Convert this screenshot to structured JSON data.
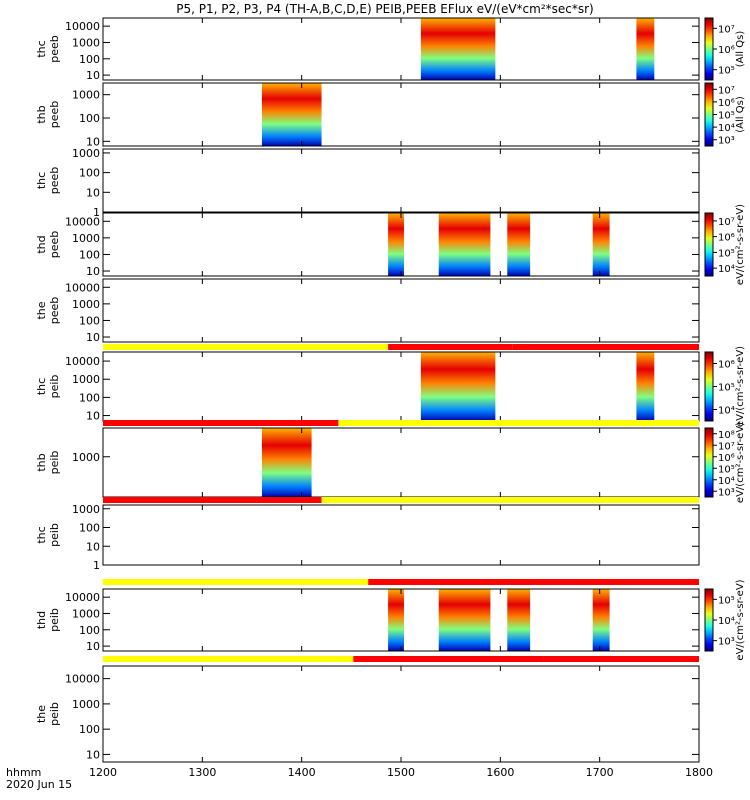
{
  "title": "P5, P1, P2, P3, P4 (TH-A,B,C,D,E) PEIB,PEEB EFlux eV/(eV*cm²*sec*sr)",
  "time_axis": {
    "label_line1": "hhmm",
    "label_line2": "2020 Jun 15",
    "ticks": [
      "1200",
      "1300",
      "1400",
      "1500",
      "1600",
      "1700",
      "1800"
    ]
  },
  "chart_data": {
    "type": "heatmap",
    "x_range": [
      1200,
      1800
    ],
    "panels": [
      {
        "id": "thc-peeb",
        "label1": "thc",
        "label2": "peeb",
        "yticks": [
          "10",
          "100",
          "1000",
          "10000"
        ],
        "ylog": [
          0.7,
          4.5
        ],
        "data_intervals": [
          [
            1520,
            1595
          ],
          [
            1737,
            1755
          ]
        ],
        "colorbar": {
          "ticks": [
            "10⁵",
            "10⁶",
            "10⁷"
          ],
          "title": "(All Qs)"
        }
      },
      {
        "id": "thb-peeb",
        "label1": "thb",
        "label2": "peeb",
        "yticks": [
          "10",
          "100",
          "1000"
        ],
        "ylog": [
          0.8,
          3.5
        ],
        "data_intervals": [
          [
            1360,
            1420
          ]
        ],
        "colorbar": {
          "ticks": [
            "10³",
            "10⁴",
            "10⁵",
            "10⁶",
            "10⁷"
          ],
          "title": "(All Qs)"
        }
      },
      {
        "id": "thc-peeb-2",
        "label1": "thc",
        "label2": "peeb",
        "yticks": [
          "1",
          "10",
          "100",
          "1000"
        ],
        "ylog": [
          0,
          3.2
        ],
        "data_intervals": [],
        "colorbar": null
      },
      {
        "id": "thd-peeb",
        "label1": "thd",
        "label2": "peeb",
        "yticks": [
          "10",
          "100",
          "1000",
          "10000"
        ],
        "ylog": [
          0.7,
          4.5
        ],
        "data_intervals": [
          [
            1487,
            1503
          ],
          [
            1538,
            1590
          ],
          [
            1607,
            1630
          ],
          [
            1693,
            1710
          ]
        ],
        "colorbar": {
          "ticks": [
            "10⁴",
            "10⁵",
            "10⁶",
            "10⁷"
          ],
          "title": "eV/(cm²-s-sr-eV)"
        }
      },
      {
        "id": "the-peeb",
        "label1": "the",
        "label2": "peeb",
        "yticks": [
          "10",
          "100",
          "1000",
          "10000"
        ],
        "ylog": [
          0.7,
          4.5
        ],
        "data_intervals": [],
        "colorbar": null
      },
      {
        "id": "thc-peib",
        "label1": "thc",
        "label2": "peib",
        "yticks": [
          "10",
          "100",
          "1000",
          "10000"
        ],
        "ylog": [
          0.7,
          4.5
        ],
        "data_intervals": [
          [
            1520,
            1595
          ],
          [
            1737,
            1755
          ]
        ],
        "colorbar": {
          "ticks": [
            "10⁴",
            "10⁵",
            "10⁶"
          ],
          "title": "eV/(cm²-s-sr-eV)"
        }
      },
      {
        "id": "thb-peib",
        "label1": "thb",
        "label2": "peib",
        "yticks": [
          "1000"
        ],
        "ylog": [
          2.3,
          3.5
        ],
        "data_intervals": [
          [
            1360,
            1410
          ]
        ],
        "colorbar": {
          "ticks": [
            "10³",
            "10⁴",
            "10⁵",
            "10⁶",
            "10⁷",
            "10⁸"
          ],
          "title": "eV/(cm²-s-sr-eV)"
        }
      },
      {
        "id": "thc-peib-2",
        "label1": "thc",
        "label2": "peib",
        "yticks": [
          "1",
          "10",
          "100",
          "1000"
        ],
        "ylog": [
          0,
          3.2
        ],
        "data_intervals": [],
        "colorbar": null
      },
      {
        "id": "thd-peib",
        "label1": "thd",
        "label2": "peib",
        "yticks": [
          "10",
          "100",
          "1000",
          "10000"
        ],
        "ylog": [
          0.7,
          4.5
        ],
        "data_intervals": [
          [
            1487,
            1503
          ],
          [
            1538,
            1590
          ],
          [
            1607,
            1630
          ],
          [
            1693,
            1710
          ]
        ],
        "colorbar": {
          "ticks": [
            "10³",
            "10⁴",
            "10⁵"
          ],
          "title": "eV/(cm²-s-sr-eV)"
        }
      },
      {
        "id": "the-peib",
        "label1": "the",
        "label2": "peib",
        "yticks": [
          "10",
          "100",
          "1000",
          "10000"
        ],
        "ylog": [
          0.7,
          4.5
        ],
        "data_intervals": [],
        "colorbar": null
      }
    ],
    "mode_bars": [
      {
        "after_panel": 4,
        "segments": [
          {
            "from": 1200,
            "to": 1487,
            "color": "#ffff00"
          },
          {
            "from": 1487,
            "to": 1612,
            "color": "#ff0000"
          },
          {
            "from": 1612,
            "to": 1800,
            "color": "#ff0000"
          }
        ]
      },
      {
        "after_panel": 5,
        "segments": [
          {
            "from": 1200,
            "to": 1437,
            "color": "#ff0000"
          },
          {
            "from": 1437,
            "to": 1800,
            "color": "#ffff00"
          }
        ]
      },
      {
        "after_panel": 6,
        "segments": [
          {
            "from": 1200,
            "to": 1420,
            "color": "#ff0000"
          },
          {
            "from": 1420,
            "to": 1800,
            "color": "#ffff00"
          }
        ]
      },
      {
        "after_panel": 7,
        "segments": [
          {
            "from": 1200,
            "to": 1467,
            "color": "#ffff00"
          },
          {
            "from": 1467,
            "to": 1800,
            "color": "#ff0000"
          }
        ]
      },
      {
        "after_panel": 8,
        "segments": [
          {
            "from": 1200,
            "to": 1452,
            "color": "#ffff00"
          },
          {
            "from": 1452,
            "to": 1643,
            "color": "#ff0000"
          },
          {
            "from": 1643,
            "to": 1800,
            "color": "#ff0000"
          }
        ]
      }
    ]
  }
}
